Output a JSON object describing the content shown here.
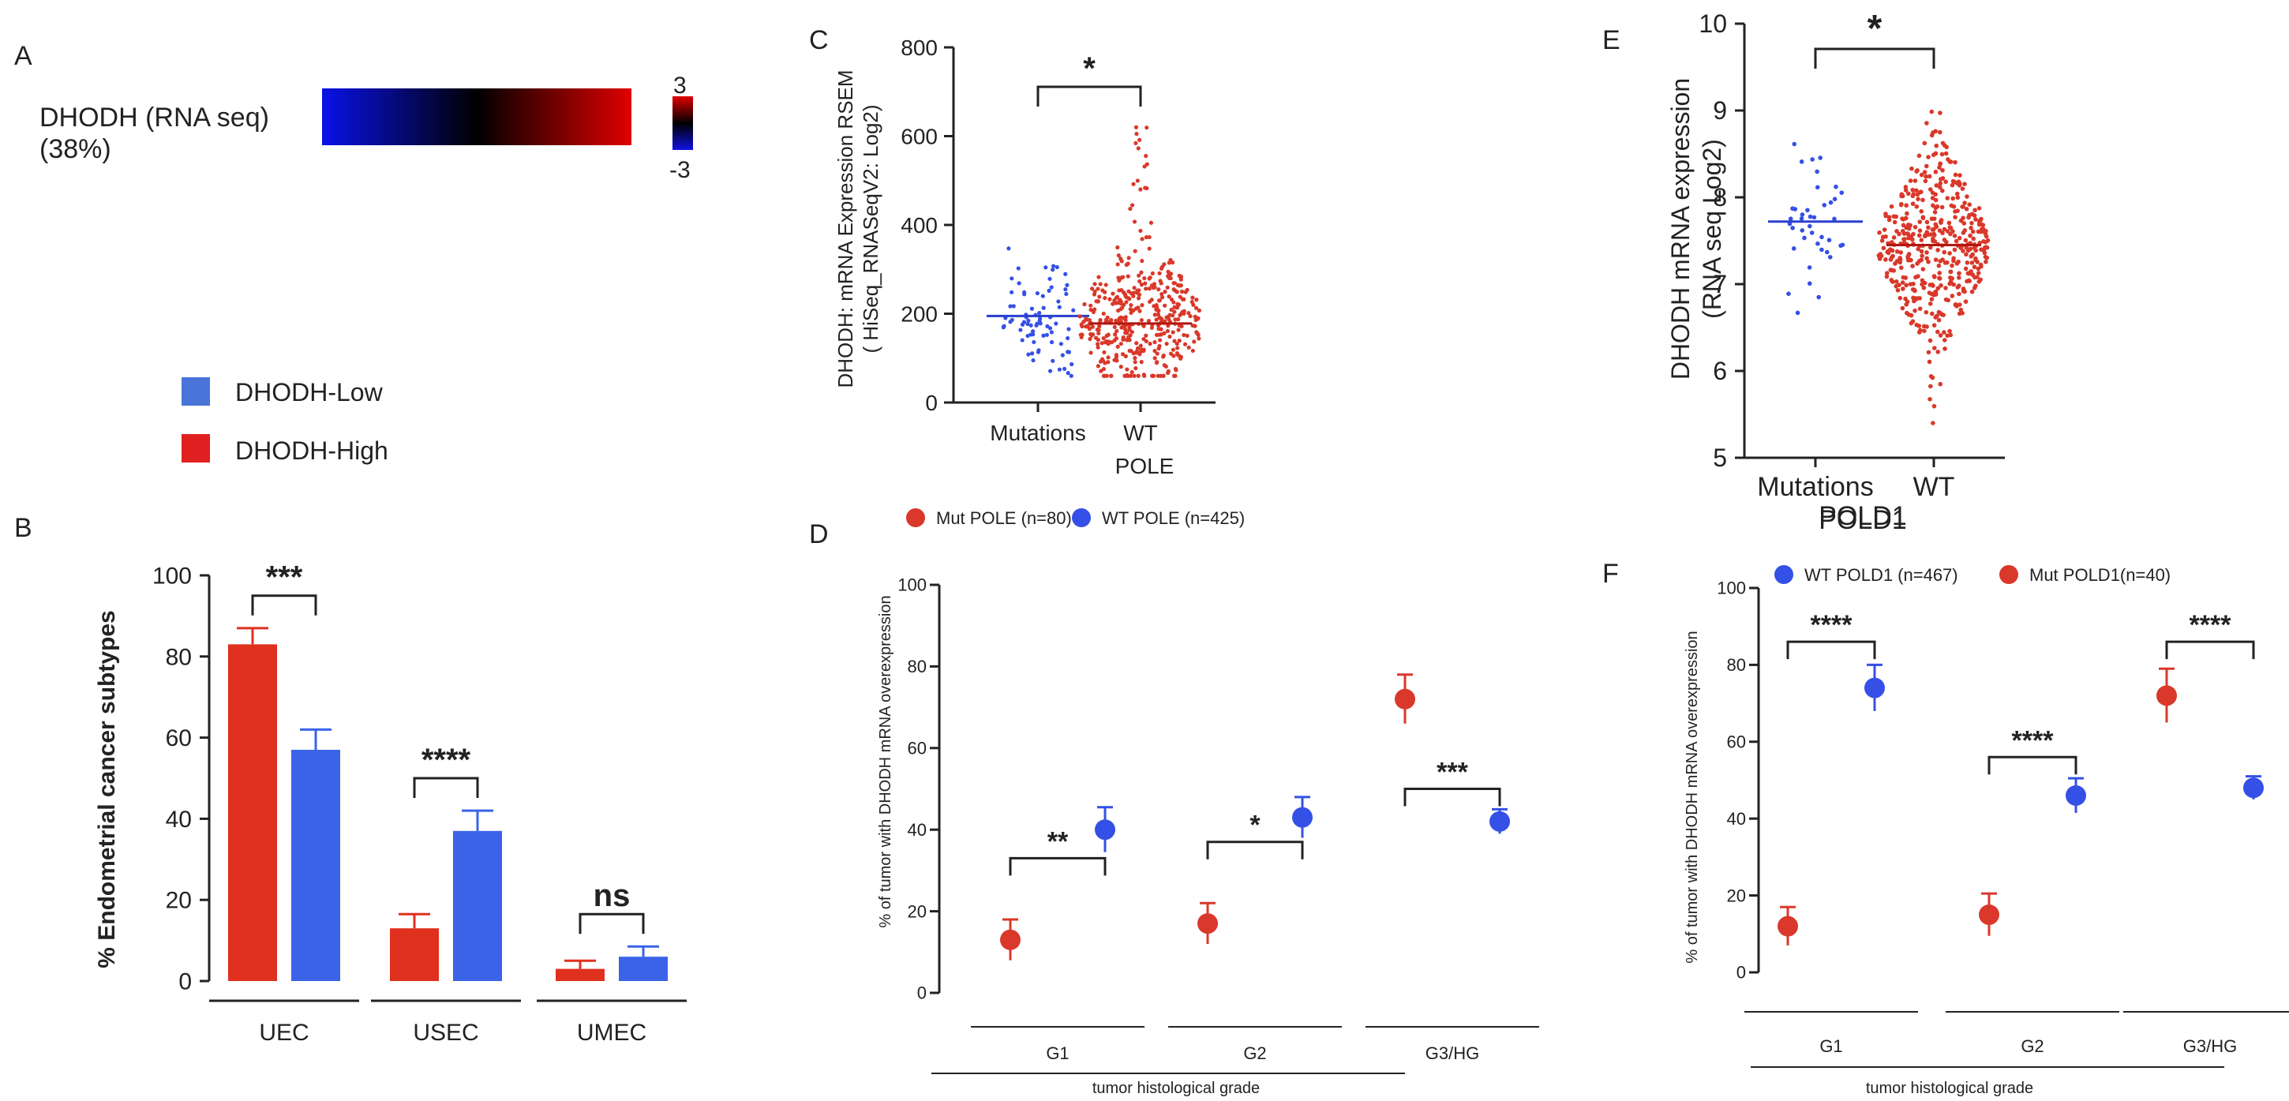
{
  "panel_letters": {
    "a": "A",
    "b": "B",
    "c": "C",
    "d": "D",
    "e": "E",
    "f": "F"
  },
  "colors": {
    "red": "#e0301e",
    "blue": "#3a63e8",
    "blue_light": "#4169e1",
    "dot_red": "#d9382a",
    "dot_blue": "#3550e6"
  },
  "heatmap": {
    "label_line1": "DHODH (RNA seq)",
    "label_line2": "(38%)",
    "scale_max": "3",
    "scale_min": "-3"
  },
  "legend_b": {
    "low": "DHODH-Low",
    "high": "DHODH-High"
  },
  "chart_data": [
    {
      "id": "B",
      "type": "bar",
      "title": "",
      "ylabel": "% Endometrial cancer subtypes",
      "ylim": [
        0,
        100
      ],
      "yticks": [
        "0",
        "20",
        "40",
        "60",
        "80",
        "100"
      ],
      "categories": [
        "UEC",
        "USEC",
        "UMEC"
      ],
      "series": [
        {
          "name": "DHODH-High",
          "values": [
            83,
            13,
            3
          ],
          "errors": [
            4,
            3.5,
            2
          ]
        },
        {
          "name": "DHODH-Low",
          "values": [
            57,
            37,
            6
          ],
          "errors": [
            5,
            5,
            2.5
          ]
        }
      ],
      "significance": [
        "***",
        "****",
        "ns"
      ]
    },
    {
      "id": "C",
      "type": "scatter",
      "ylabel_line1": "DHODH: mRNA Expression RSEM",
      "ylabel_line2": "( HiSeq_RNASeqV2: Log2)",
      "xlabel": "POLE",
      "ylim": [
        0,
        800
      ],
      "yticks": [
        "0",
        "200",
        "400",
        "600",
        "800"
      ],
      "categories": [
        "Mutations",
        "WT"
      ],
      "medians": [
        195,
        178
      ],
      "n": [
        80,
        425
      ],
      "significance": "*"
    },
    {
      "id": "E",
      "type": "scatter",
      "ylabel_line1": "DHODH  mRNA expression",
      "ylabel_line2": "(RNA seq Log2)",
      "xlabel": "POLD1",
      "ylim": [
        5,
        10
      ],
      "yticks": [
        "5",
        "6",
        "7",
        "8",
        "9",
        "10"
      ],
      "categories": [
        "Mutations",
        "WT"
      ],
      "medians": [
        7.72,
        7.45
      ],
      "n": [
        40,
        467
      ],
      "significance": "*"
    },
    {
      "id": "D",
      "type": "scatter",
      "ylabel": "% of tumor with DHODH mRNA overexpression",
      "xlabel": "tumor histological grade",
      "ylim": [
        0,
        100
      ],
      "yticks": [
        "0",
        "20",
        "40",
        "60",
        "80",
        "100"
      ],
      "categories": [
        "G1",
        "G2",
        "G3/HG"
      ],
      "series": [
        {
          "name": "Mut POLE (n=80)",
          "values": [
            13,
            17,
            72
          ],
          "errors": [
            5,
            5,
            6
          ]
        },
        {
          "name": "WT POLE (n=425)",
          "values": [
            40,
            43,
            42
          ],
          "errors": [
            5.5,
            5,
            3
          ]
        }
      ],
      "significance": [
        "**",
        "*",
        "***"
      ]
    },
    {
      "id": "F",
      "type": "scatter",
      "ylabel": "% of tumor with DHODH mRNA overexpression",
      "xlabel": "tumor histological grade",
      "ylim": [
        0,
        100
      ],
      "yticks": [
        "0",
        "20",
        "40",
        "60",
        "80",
        "100"
      ],
      "categories": [
        "G1",
        "G2",
        "G3/HG"
      ],
      "series": [
        {
          "name": "WT POLD1 (n=467)",
          "values": [
            74,
            46,
            48
          ],
          "errors": [
            6,
            4.5,
            3
          ]
        },
        {
          "name": "Mut POLD1(n=40)",
          "values": [
            12,
            15,
            72
          ],
          "errors": [
            5,
            5.5,
            7
          ]
        }
      ],
      "significance": [
        "****",
        "****",
        "****"
      ]
    }
  ]
}
